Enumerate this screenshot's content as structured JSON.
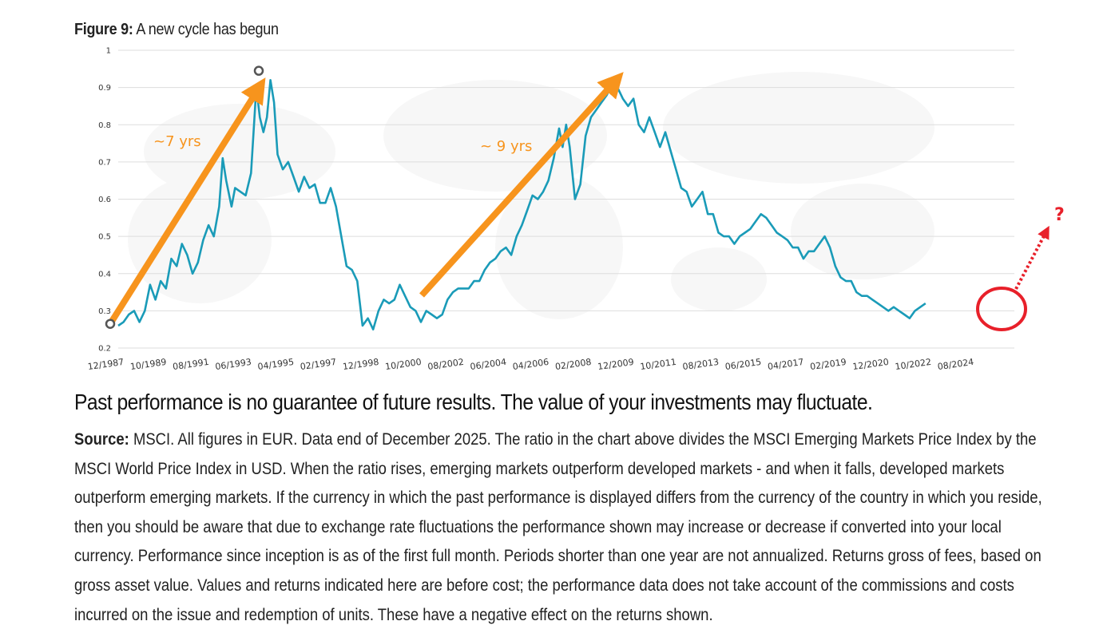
{
  "figure": {
    "label": "Figure 9:",
    "title": "A new cycle has begun"
  },
  "disclaimer": "Past performance is no guarantee of future results. The value of your investments may fluctuate.",
  "source": {
    "label": "Source:",
    "text": "MSCI. All figures in EUR. Data end of December 2025. The ratio in the chart above divides the MSCI Emerging Markets Price Index by the MSCI World Price Index in USD. When the ratio rises, emerging markets outperform developed markets - and when it falls, developed markets outperform emerging markets. If the currency in which the past performance is displayed differs from the currency of the country in which you reside, then you should be aware that due to exchange rate fluctuations the performance shown may increase or decrease if converted into your local currency. Performance since inception is as of the first full month. Periods shorter than one year are not annualized. Returns gross of fees, based on gross asset value. Values and returns indicated here are before cost; the performance data does not take account of the commissions and costs incurred on the issue and redemption of units. These have a negative effect on the returns shown."
  },
  "chart_data": {
    "type": "line",
    "ylim": [
      0.2,
      1
    ],
    "yticks": [
      "0.2",
      "0.3",
      "0.4",
      "0.5",
      "0.6",
      "0.7",
      "0.8",
      "0.9",
      "1"
    ],
    "xticks": [
      "12/1987",
      "10/1989",
      "08/1991",
      "06/1993",
      "04/1995",
      "02/1997",
      "12/1998",
      "10/2000",
      "08/2002",
      "06/2004",
      "04/2006",
      "02/2008",
      "12/2009",
      "10/2011",
      "08/2013",
      "06/2015",
      "04/2017",
      "02/2019",
      "12/2020",
      "10/2022",
      "08/2024"
    ],
    "grid": true,
    "series": [
      {
        "color": "#1A9BB8",
        "points": [
          [
            "1987-12",
            0.26
          ],
          [
            "1988-03",
            0.27
          ],
          [
            "1988-06",
            0.29
          ],
          [
            "1988-09",
            0.3
          ],
          [
            "1988-12",
            0.27
          ],
          [
            "1989-03",
            0.3
          ],
          [
            "1989-06",
            0.37
          ],
          [
            "1989-09",
            0.33
          ],
          [
            "1989-12",
            0.38
          ],
          [
            "1990-03",
            0.36
          ],
          [
            "1990-06",
            0.44
          ],
          [
            "1990-09",
            0.42
          ],
          [
            "1990-12",
            0.48
          ],
          [
            "1991-03",
            0.45
          ],
          [
            "1991-06",
            0.4
          ],
          [
            "1991-09",
            0.43
          ],
          [
            "1991-12",
            0.49
          ],
          [
            "1992-03",
            0.53
          ],
          [
            "1992-06",
            0.5
          ],
          [
            "1992-09",
            0.58
          ],
          [
            "1992-11",
            0.71
          ],
          [
            "1993-01",
            0.65
          ],
          [
            "1993-04",
            0.58
          ],
          [
            "1993-06",
            0.63
          ],
          [
            "1993-09",
            0.62
          ],
          [
            "1993-12",
            0.61
          ],
          [
            "1994-03",
            0.67
          ],
          [
            "1994-06",
            0.9
          ],
          [
            "1994-08",
            0.82
          ],
          [
            "1994-10",
            0.78
          ],
          [
            "1994-12",
            0.82
          ],
          [
            "1995-02",
            0.92
          ],
          [
            "1995-04",
            0.86
          ],
          [
            "1995-06",
            0.72
          ],
          [
            "1995-09",
            0.68
          ],
          [
            "1995-12",
            0.7
          ],
          [
            "1996-03",
            0.66
          ],
          [
            "1996-06",
            0.62
          ],
          [
            "1996-09",
            0.66
          ],
          [
            "1996-12",
            0.63
          ],
          [
            "1997-03",
            0.64
          ],
          [
            "1997-06",
            0.59
          ],
          [
            "1997-09",
            0.59
          ],
          [
            "1997-12",
            0.63
          ],
          [
            "1998-03",
            0.58
          ],
          [
            "1998-06",
            0.5
          ],
          [
            "1998-09",
            0.42
          ],
          [
            "1998-12",
            0.41
          ],
          [
            "1999-03",
            0.38
          ],
          [
            "1999-06",
            0.26
          ],
          [
            "1999-09",
            0.28
          ],
          [
            "1999-12",
            0.25
          ],
          [
            "2000-03",
            0.3
          ],
          [
            "2000-06",
            0.33
          ],
          [
            "2000-09",
            0.32
          ],
          [
            "2000-12",
            0.33
          ],
          [
            "2001-03",
            0.37
          ],
          [
            "2001-06",
            0.34
          ],
          [
            "2001-09",
            0.31
          ],
          [
            "2001-12",
            0.3
          ],
          [
            "2002-03",
            0.27
          ],
          [
            "2002-06",
            0.3
          ],
          [
            "2002-09",
            0.29
          ],
          [
            "2002-12",
            0.28
          ],
          [
            "2003-03",
            0.29
          ],
          [
            "2003-06",
            0.33
          ],
          [
            "2003-09",
            0.35
          ],
          [
            "2003-12",
            0.36
          ],
          [
            "2004-03",
            0.36
          ],
          [
            "2004-06",
            0.36
          ],
          [
            "2004-09",
            0.38
          ],
          [
            "2004-12",
            0.38
          ],
          [
            "2005-03",
            0.41
          ],
          [
            "2005-06",
            0.43
          ],
          [
            "2005-09",
            0.44
          ],
          [
            "2005-12",
            0.46
          ],
          [
            "2006-03",
            0.47
          ],
          [
            "2006-06",
            0.45
          ],
          [
            "2006-09",
            0.5
          ],
          [
            "2006-12",
            0.53
          ],
          [
            "2007-03",
            0.57
          ],
          [
            "2007-06",
            0.61
          ],
          [
            "2007-09",
            0.6
          ],
          [
            "2007-12",
            0.62
          ],
          [
            "2008-03",
            0.65
          ],
          [
            "2008-06",
            0.71
          ],
          [
            "2008-09",
            0.79
          ],
          [
            "2008-11",
            0.74
          ],
          [
            "2009-01",
            0.8
          ],
          [
            "2009-03",
            0.74
          ],
          [
            "2009-06",
            0.6
          ],
          [
            "2009-09",
            0.64
          ],
          [
            "2009-12",
            0.77
          ],
          [
            "2010-03",
            0.82
          ],
          [
            "2010-06",
            0.84
          ],
          [
            "2010-09",
            0.86
          ],
          [
            "2010-12",
            0.88
          ],
          [
            "2011-03",
            0.91
          ],
          [
            "2011-06",
            0.9
          ],
          [
            "2011-09",
            0.87
          ],
          [
            "2011-12",
            0.85
          ],
          [
            "2012-03",
            0.87
          ],
          [
            "2012-06",
            0.8
          ],
          [
            "2012-09",
            0.78
          ],
          [
            "2012-12",
            0.82
          ],
          [
            "2013-03",
            0.78
          ],
          [
            "2013-06",
            0.74
          ],
          [
            "2013-09",
            0.78
          ],
          [
            "2013-12",
            0.73
          ],
          [
            "2014-03",
            0.68
          ],
          [
            "2014-06",
            0.63
          ],
          [
            "2014-09",
            0.62
          ],
          [
            "2014-12",
            0.58
          ],
          [
            "2015-03",
            0.6
          ],
          [
            "2015-06",
            0.62
          ],
          [
            "2015-09",
            0.56
          ],
          [
            "2015-12",
            0.56
          ],
          [
            "2016-03",
            0.51
          ],
          [
            "2016-06",
            0.5
          ],
          [
            "2016-09",
            0.5
          ],
          [
            "2016-12",
            0.48
          ],
          [
            "2017-03",
            0.5
          ],
          [
            "2017-06",
            0.51
          ],
          [
            "2017-09",
            0.52
          ],
          [
            "2017-12",
            0.54
          ],
          [
            "2018-03",
            0.56
          ],
          [
            "2018-06",
            0.55
          ],
          [
            "2018-09",
            0.53
          ],
          [
            "2018-12",
            0.51
          ],
          [
            "2019-03",
            0.5
          ],
          [
            "2019-06",
            0.49
          ],
          [
            "2019-09",
            0.47
          ],
          [
            "2019-12",
            0.47
          ],
          [
            "2020-03",
            0.44
          ],
          [
            "2020-06",
            0.46
          ],
          [
            "2020-09",
            0.46
          ],
          [
            "2020-12",
            0.48
          ],
          [
            "2021-03",
            0.5
          ],
          [
            "2021-06",
            0.47
          ],
          [
            "2021-09",
            0.42
          ],
          [
            "2021-12",
            0.39
          ],
          [
            "2022-03",
            0.38
          ],
          [
            "2022-06",
            0.38
          ],
          [
            "2022-09",
            0.35
          ],
          [
            "2022-12",
            0.34
          ],
          [
            "2023-03",
            0.34
          ],
          [
            "2023-06",
            0.33
          ],
          [
            "2023-09",
            0.32
          ],
          [
            "2023-12",
            0.31
          ],
          [
            "2024-03",
            0.3
          ],
          [
            "2024-06",
            0.31
          ],
          [
            "2024-09",
            0.3
          ],
          [
            "2024-12",
            0.29
          ],
          [
            "2025-03",
            0.28
          ],
          [
            "2025-06",
            0.3
          ],
          [
            "2025-09",
            0.31
          ],
          [
            "2025-12",
            0.32
          ]
        ]
      }
    ],
    "annotations": [
      {
        "text": "~7 yrs",
        "from": [
          "1987-12",
          0.265
        ],
        "to": [
          "1994-06",
          0.945
        ]
      },
      {
        "text": "~ 9 yrs",
        "from": [
          "2000-10",
          0.35
        ],
        "to": [
          "2009-10",
          0.94
        ]
      },
      {
        "text": "?"
      }
    ],
    "colors": {
      "line": "#1A9BB8",
      "arrow": "#F7941D",
      "highlight": "#E8202A"
    }
  }
}
